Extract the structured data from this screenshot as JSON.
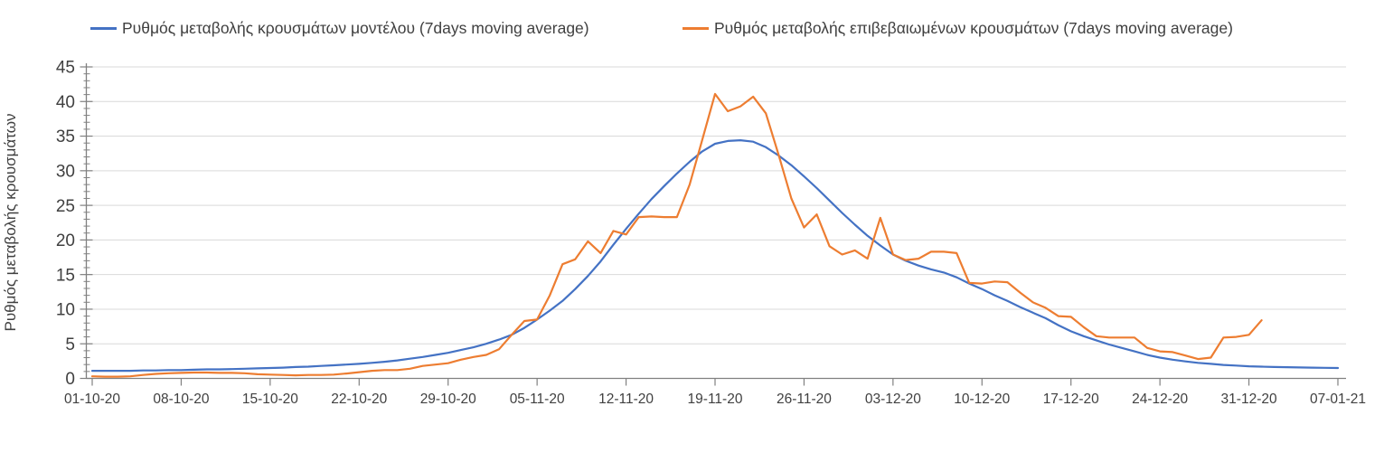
{
  "legend": {
    "items": [
      {
        "label": "Ρυθμός μεταβολής κρουσμάτων μοντέλου (7days moving average)",
        "color": "#4472C4"
      },
      {
        "label": "Ρυθμός μεταβολής επιβεβαιωμένων κρουσμάτων (7days moving average)",
        "color": "#ED7D31"
      }
    ]
  },
  "axes_style": {
    "axis_color": "#808080",
    "grid_color": "#D9D9D9",
    "label_color": "#404040"
  },
  "chart_data": {
    "type": "line",
    "title": "",
    "xlabel": "",
    "ylabel": "Ρυθμός μεταβολής κρουσμάτων",
    "ylim": [
      0,
      45
    ],
    "y_ticks": [
      0,
      5,
      10,
      15,
      20,
      25,
      30,
      35,
      40,
      45
    ],
    "y_minor_tick_step": 1,
    "grid": "horizontal",
    "legend_position": "top",
    "x_tick_labels": [
      "01-10-20",
      "08-10-20",
      "15-10-20",
      "22-10-20",
      "29-10-20",
      "05-11-20",
      "12-11-20",
      "19-11-20",
      "26-11-20",
      "03-12-20",
      "10-12-20",
      "17-12-20",
      "24-12-20",
      "31-12-20",
      "07-01-21"
    ],
    "x_tick_spacing_days": 7,
    "total_days": 98,
    "series": [
      {
        "name": "Ρυθμός μεταβολής κρουσμάτων μοντέλου (7days moving average)",
        "color": "#4472C4",
        "start_day": 0,
        "values": [
          1.1,
          1.1,
          1.1,
          1.1,
          1.15,
          1.15,
          1.2,
          1.2,
          1.25,
          1.3,
          1.3,
          1.35,
          1.4,
          1.45,
          1.5,
          1.55,
          1.65,
          1.7,
          1.8,
          1.9,
          2.0,
          2.1,
          2.25,
          2.4,
          2.6,
          2.85,
          3.1,
          3.4,
          3.7,
          4.1,
          4.5,
          5.0,
          5.6,
          6.3,
          7.3,
          8.5,
          9.8,
          11.2,
          12.9,
          14.8,
          16.9,
          19.3,
          21.6,
          23.8,
          25.9,
          27.8,
          29.6,
          31.3,
          32.8,
          33.9,
          34.3,
          34.4,
          34.2,
          33.4,
          32.2,
          30.8,
          29.2,
          27.5,
          25.7,
          23.9,
          22.2,
          20.6,
          19.2,
          17.9,
          17.0,
          16.3,
          15.75,
          15.3,
          14.6,
          13.7,
          12.9,
          12.0,
          11.2,
          10.3,
          9.5,
          8.7,
          7.7,
          6.8,
          6.1,
          5.5,
          4.9,
          4.4,
          3.9,
          3.4,
          3.0,
          2.7,
          2.45,
          2.25,
          2.1,
          1.95,
          1.85,
          1.75,
          1.7,
          1.65,
          1.62,
          1.58,
          1.55,
          1.53,
          1.5
        ]
      },
      {
        "name": "Ρυθμός μεταβολής επιβεβαιωμένων κρουσμάτων (7days moving average)",
        "color": "#ED7D31",
        "start_day": 0,
        "values": [
          0.3,
          0.25,
          0.25,
          0.3,
          0.5,
          0.65,
          0.75,
          0.8,
          0.85,
          0.85,
          0.8,
          0.8,
          0.75,
          0.6,
          0.55,
          0.5,
          0.45,
          0.5,
          0.5,
          0.55,
          0.7,
          0.9,
          1.1,
          1.2,
          1.2,
          1.4,
          1.8,
          2.0,
          2.2,
          2.7,
          3.1,
          3.4,
          4.2,
          6.3,
          8.3,
          8.5,
          12.0,
          16.5,
          17.2,
          19.8,
          18.1,
          21.3,
          20.8,
          23.3,
          23.4,
          23.3,
          23.3,
          28.0,
          34.5,
          41.1,
          38.6,
          39.3,
          40.7,
          38.3,
          32.3,
          26.0,
          21.8,
          23.7,
          19.1,
          17.9,
          18.5,
          17.3,
          23.2,
          17.9,
          17.1,
          17.3,
          18.3,
          18.3,
          18.1,
          13.8,
          13.7,
          14.0,
          13.9,
          12.4,
          11.0,
          10.2,
          9.0,
          8.9,
          7.4,
          6.1,
          5.9,
          5.9,
          5.9,
          4.4,
          3.9,
          3.8,
          3.3,
          2.8,
          3.0,
          5.9,
          6.0,
          6.3,
          8.4
        ]
      }
    ]
  }
}
